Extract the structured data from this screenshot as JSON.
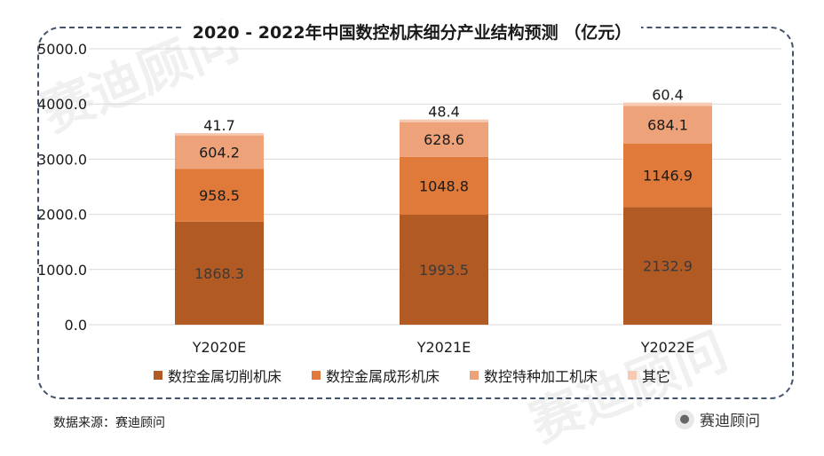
{
  "chart_data": {
    "type": "bar",
    "stacked": true,
    "title": "2020 - 2022年中国数控机床细分产业结构预测 （亿元）",
    "categories": [
      "Y2020E",
      "Y2021E",
      "Y2022E"
    ],
    "series": [
      {
        "name": "数控金属切削机床",
        "color": "#b25a24",
        "values": [
          1868.3,
          1993.5,
          2132.9
        ]
      },
      {
        "name": "数控金属成形机床",
        "color": "#e07a3a",
        "values": [
          958.5,
          1048.8,
          1146.9
        ]
      },
      {
        "name": "数控特种加工机床",
        "color": "#eda27a",
        "values": [
          604.2,
          628.6,
          684.1
        ]
      },
      {
        "name": "其它",
        "color": "#f6c9b3",
        "values": [
          41.7,
          48.4,
          60.4
        ]
      }
    ],
    "yticks": [
      "0.0",
      "1000.0",
      "2000.0",
      "3000.0",
      "4000.0",
      "5000.0"
    ],
    "ylim": [
      0,
      5000
    ],
    "grid": true,
    "legend": "bottom"
  },
  "source_text": "数据来源：赛迪顾问",
  "brand_text": "赛迪顾问",
  "watermark_text": "赛迪顾问"
}
